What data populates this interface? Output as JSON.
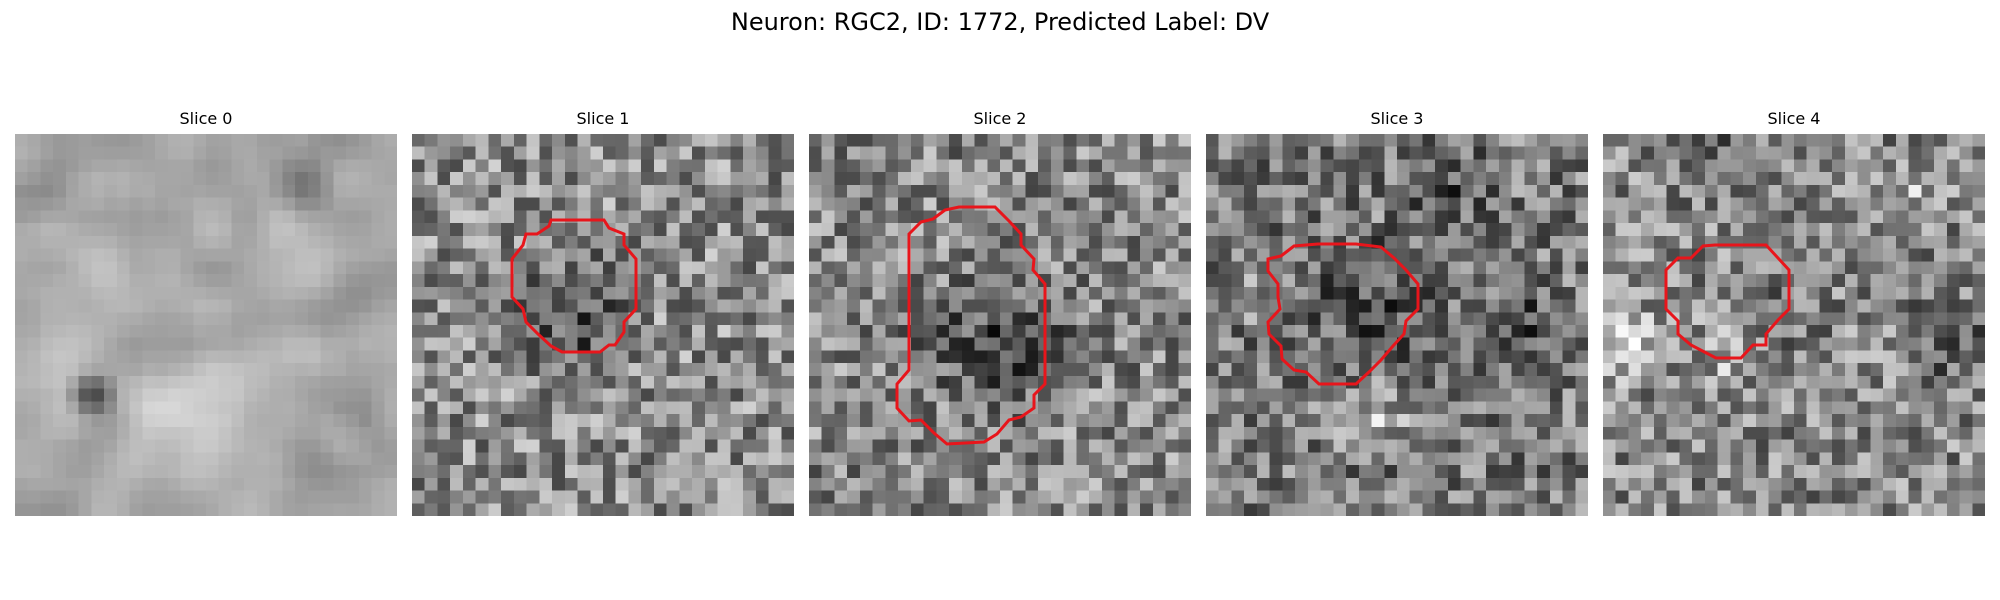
{
  "figure": {
    "title": "Neuron: RGC2, ID: 1772, Predicted Label: DV"
  },
  "colors": {
    "contour": "#e8151b",
    "background": "#ffffff"
  },
  "panels": [
    {
      "title": "Slice 0",
      "has_contour": false
    },
    {
      "title": "Slice 1",
      "has_contour": true
    },
    {
      "title": "Slice 2",
      "has_contour": true
    },
    {
      "title": "Slice 3",
      "has_contour": true
    },
    {
      "title": "Slice 4",
      "has_contour": true
    }
  ]
}
